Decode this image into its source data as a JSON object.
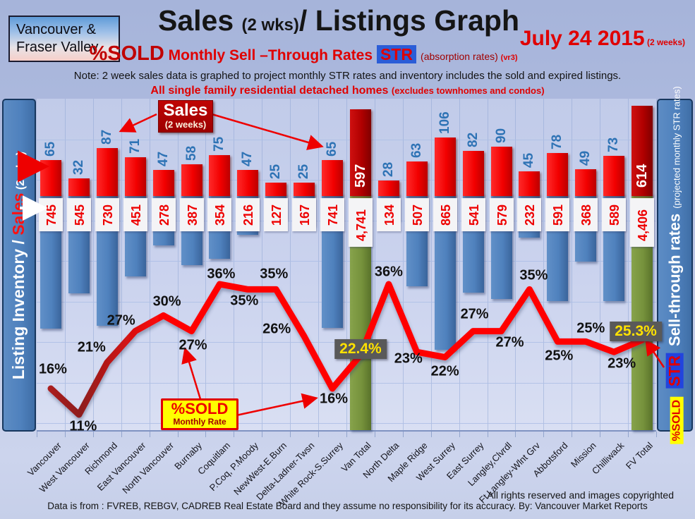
{
  "header": {
    "region_badge": {
      "line1": "Vancouver &",
      "line2": "Fraser Valley"
    },
    "title": {
      "main1": "Sales ",
      "small1": "(2 wks)",
      "main2": "/ Listings Graph"
    },
    "date": {
      "main": "July 24 2015",
      "small": " (2 weeks)"
    },
    "subtitle": {
      "pct_sold": "%SOLD",
      "rates": " Monthly Sell –Through Rates",
      "str_badge": "STR",
      "absorption": "(absorption rates) ",
      "version": "(vr3)"
    },
    "note": "Note: 2 week sales data is graphed to project monthly STR rates and inventory includes the sold and expired listings.",
    "scope": {
      "main": "All single family residential detached homes ",
      "paren": "(excludes townhomes and condos)"
    }
  },
  "axis_labels": {
    "left": {
      "white_part": "Listing Inventory / ",
      "red_part": "Sales",
      "small_part": " (2  wks)"
    },
    "right": {
      "pct_sold": "%SOLD",
      "str": "STR",
      "main": "Sell-through rates",
      "paren": "(projected monthly STR rates)"
    }
  },
  "legends": {
    "sales_callout": {
      "title": "Sales",
      "sub": "(2 weeks)"
    },
    "pct_sold_callout": {
      "title": "%SOLD",
      "sub": "Monthly Rate"
    }
  },
  "footer": {
    "rights": "All rights reserved and  images copyrighted",
    "source": "Data is from : FVREB, REBGV, CADREB Real Estate Board and they assume no responsibility for its accuracy. By: Vancouver Market Reports"
  },
  "colors": {
    "sales_bar": "#ff0000",
    "sales_total_bar": "#b00000",
    "inventory_bar": "#4f81bd",
    "inventory_total_bar": "#76923c",
    "str_line": "#ff0000",
    "sales_value_text": "#2e73b5",
    "inventory_value_text": "#ee0000",
    "highlight_box_bg": "#595959",
    "highlight_box_text": "#ffe100",
    "sidebar": "#4f81bd",
    "str_badge_bg": "#2b5dd7",
    "pct_sold_badge_bg": "#ffff00"
  },
  "chart_data": {
    "type": "bar+line combo (red bars = 2-week sales, hanging blue bars = listing inventory, red line = projected monthly sell-through rate %)",
    "title": "Sales (2 wks)/ Listings Graph",
    "date": "July 24 2015",
    "categories": [
      "Vancouver",
      "West Vancouver",
      "Richmond",
      "East Vancouver",
      "North Vancouver",
      "Burnaby",
      "Coquitlam",
      "P.Coq, P.Moody",
      "NewWest-E.Burn",
      "Delta-Ladner-Twsn",
      "White Rock-S.Surrey",
      "Van Total",
      "North Delta",
      "Maple Ridge",
      "West Surrey",
      "East Surrey",
      "Langley,Clvrdl",
      "Ft Langley-Wlnt Grv",
      "Abbotsford",
      "Mission",
      "Chilliwack",
      "FV Total"
    ],
    "series": [
      {
        "name": "Sales (2 weeks)",
        "type": "bar",
        "values": [
          65,
          32,
          87,
          71,
          47,
          58,
          75,
          47,
          25,
          25,
          65,
          597,
          28,
          63,
          106,
          82,
          90,
          45,
          78,
          49,
          73,
          614
        ]
      },
      {
        "name": "Listing Inventory",
        "type": "bar-hanging",
        "values": [
          745,
          545,
          730,
          451,
          278,
          387,
          354,
          216,
          127,
          167,
          741,
          4741,
          134,
          507,
          865,
          541,
          579,
          232,
          591,
          368,
          589,
          4406
        ],
        "labels": [
          "745",
          "545",
          "730",
          "451",
          "278",
          "387",
          "354",
          "216",
          "127",
          "167",
          "741",
          "4,741",
          "134",
          "507",
          "865",
          "541",
          "579",
          "232",
          "591",
          "368",
          "589",
          "4,406"
        ]
      },
      {
        "name": "%SOLD Monthly Sell-Through Rate (STR)",
        "type": "line",
        "values": [
          16,
          11,
          21,
          27,
          30,
          27,
          36,
          35,
          35,
          26,
          16,
          22.4,
          36,
          23,
          22,
          27,
          27,
          35,
          25,
          25,
          23,
          25.3
        ],
        "labels": [
          "16%",
          "11%",
          "21%",
          "27%",
          "30%",
          "27%",
          "36%",
          "35%",
          "35%",
          "26%",
          "16%",
          "22.4%",
          "36%",
          "23%",
          "22%",
          "27%",
          "27%",
          "35%",
          "25%",
          "25%",
          "23%",
          "25.3%"
        ]
      }
    ],
    "total_indices": [
      11,
      21
    ],
    "grid": true,
    "legend_position": "callout boxes with arrows"
  }
}
